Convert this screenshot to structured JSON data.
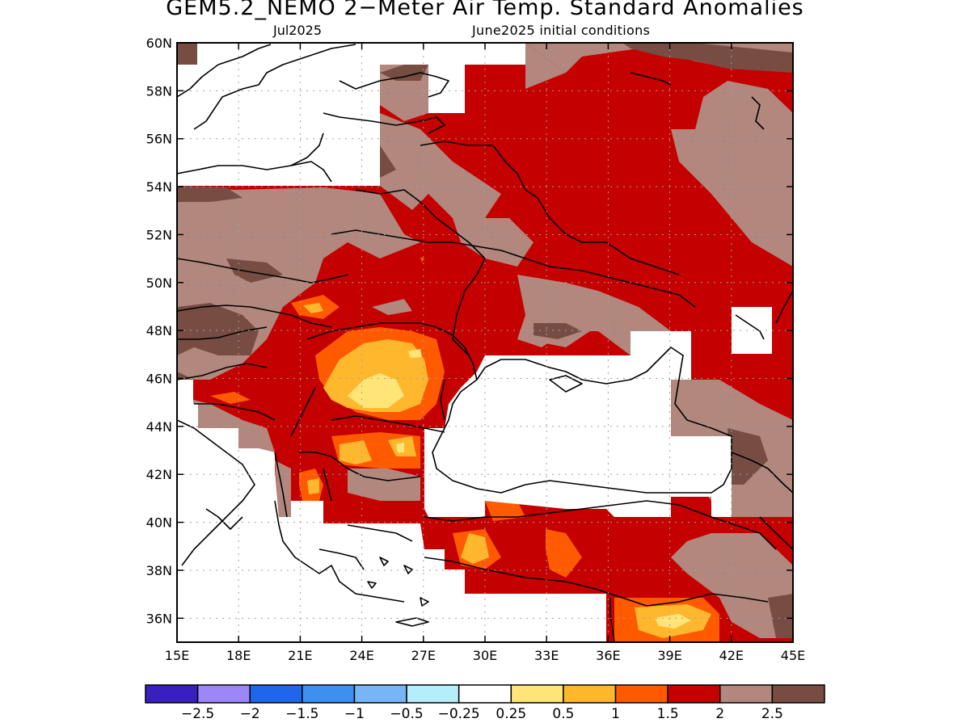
{
  "title": "GEM5.2_NEMO 2−Meter Air Temp. Standard Anomalies",
  "subtitle_left": "Jul2025",
  "subtitle_right": "June2025 initial conditions",
  "map": {
    "lon_ticks": [
      "15E",
      "18E",
      "21E",
      "24E",
      "27E",
      "30E",
      "33E",
      "36E",
      "39E",
      "42E",
      "45E"
    ],
    "lat_ticks": [
      "36N",
      "38N",
      "40N",
      "42N",
      "44N",
      "46N",
      "48N",
      "50N",
      "52N",
      "54N",
      "56N",
      "58N",
      "60N"
    ],
    "lon_range": [
      15,
      45
    ],
    "lat_range": [
      35,
      60
    ],
    "grid": "dotted"
  },
  "colorbar": {
    "labels": [
      "−2.5",
      "−2",
      "−1.5",
      "−1",
      "−0.5",
      "−0.25",
      "0.25",
      "0.5",
      "1",
      "1.5",
      "2",
      "2.5"
    ],
    "colors": [
      "#3a1fbf",
      "#9d86f5",
      "#1f66e8",
      "#3d8ff0",
      "#77b5f7",
      "#b4eefa",
      "#ffffff",
      "#ffe477",
      "#ffb82e",
      "#ff5a00",
      "#c40000",
      "#b1877e",
      "#774d43"
    ]
  },
  "palette": {
    "dark_brown": "#774d43",
    "light_brown": "#b1877e",
    "dark_red": "#c40000",
    "orange_red": "#ff5a00",
    "orange": "#ffb82e",
    "yellow": "#ffe477"
  }
}
